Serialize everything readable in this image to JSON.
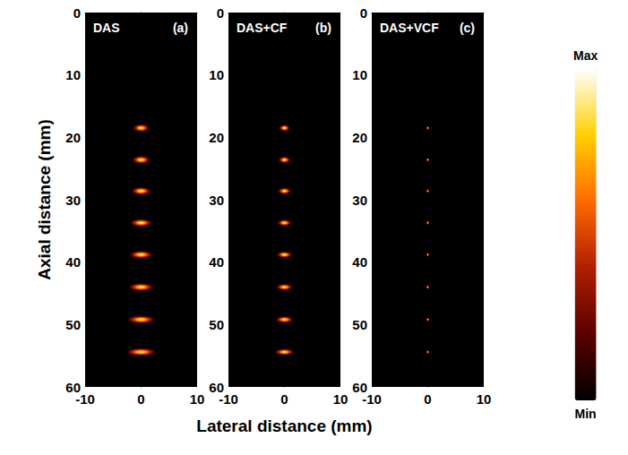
{
  "chart_data": {
    "type": "scatter",
    "marker": "blob",
    "xlabel": "Lateral distance (mm)",
    "ylabel": "Axial distance (mm)",
    "xlim": [
      -10,
      10
    ],
    "xticks": [
      -10,
      0,
      10
    ],
    "ylim": [
      0,
      60
    ],
    "yticks": [
      0,
      10,
      20,
      30,
      40,
      50,
      60
    ],
    "grid": false,
    "panels": [
      {
        "title": "DAS",
        "letter": "(a)",
        "x": [
          0,
          0,
          0,
          0,
          0,
          0,
          0,
          0
        ],
        "y": [
          18.5,
          23.6,
          28.6,
          33.7,
          38.8,
          44.0,
          49.2,
          54.4
        ],
        "psf_width": [
          3.0,
          3.3,
          3.6,
          4.0,
          4.3,
          4.6,
          5.0,
          5.4
        ],
        "psf_height": [
          1.3,
          1.3,
          1.3,
          1.3,
          1.3,
          1.3,
          1.3,
          1.3
        ]
      },
      {
        "title": "DAS+CF",
        "letter": "(b)",
        "x": [
          0,
          0,
          0,
          0,
          0,
          0,
          0,
          0
        ],
        "y": [
          18.5,
          23.6,
          28.6,
          33.7,
          38.8,
          44.0,
          49.2,
          54.4
        ],
        "psf_width": [
          2.0,
          2.2,
          2.4,
          2.6,
          2.8,
          3.0,
          3.2,
          3.5
        ],
        "psf_height": [
          1.1,
          1.1,
          1.1,
          1.1,
          1.1,
          1.1,
          1.1,
          1.1
        ]
      },
      {
        "title": "DAS+VCF",
        "letter": "(c)",
        "x": [
          0,
          0,
          0,
          0,
          0,
          0,
          0,
          0
        ],
        "y": [
          18.5,
          23.6,
          28.6,
          33.7,
          38.8,
          44.0,
          49.2,
          54.4
        ],
        "psf_width": [
          0.5,
          0.5,
          0.5,
          0.5,
          0.5,
          0.5,
          0.5,
          0.5
        ],
        "psf_height": [
          0.7,
          0.7,
          0.7,
          0.7,
          0.7,
          0.7,
          0.7,
          0.7
        ]
      }
    ],
    "colorbar": {
      "range": [
        0,
        1
      ],
      "ticks": [
        {
          "value": 0,
          "label": "Min"
        },
        {
          "value": 1,
          "label": "Max"
        }
      ],
      "colors": [
        "#000000",
        "#5a0000",
        "#b01e00",
        "#ff6a00",
        "#ffd000",
        "#ffffff"
      ]
    }
  }
}
